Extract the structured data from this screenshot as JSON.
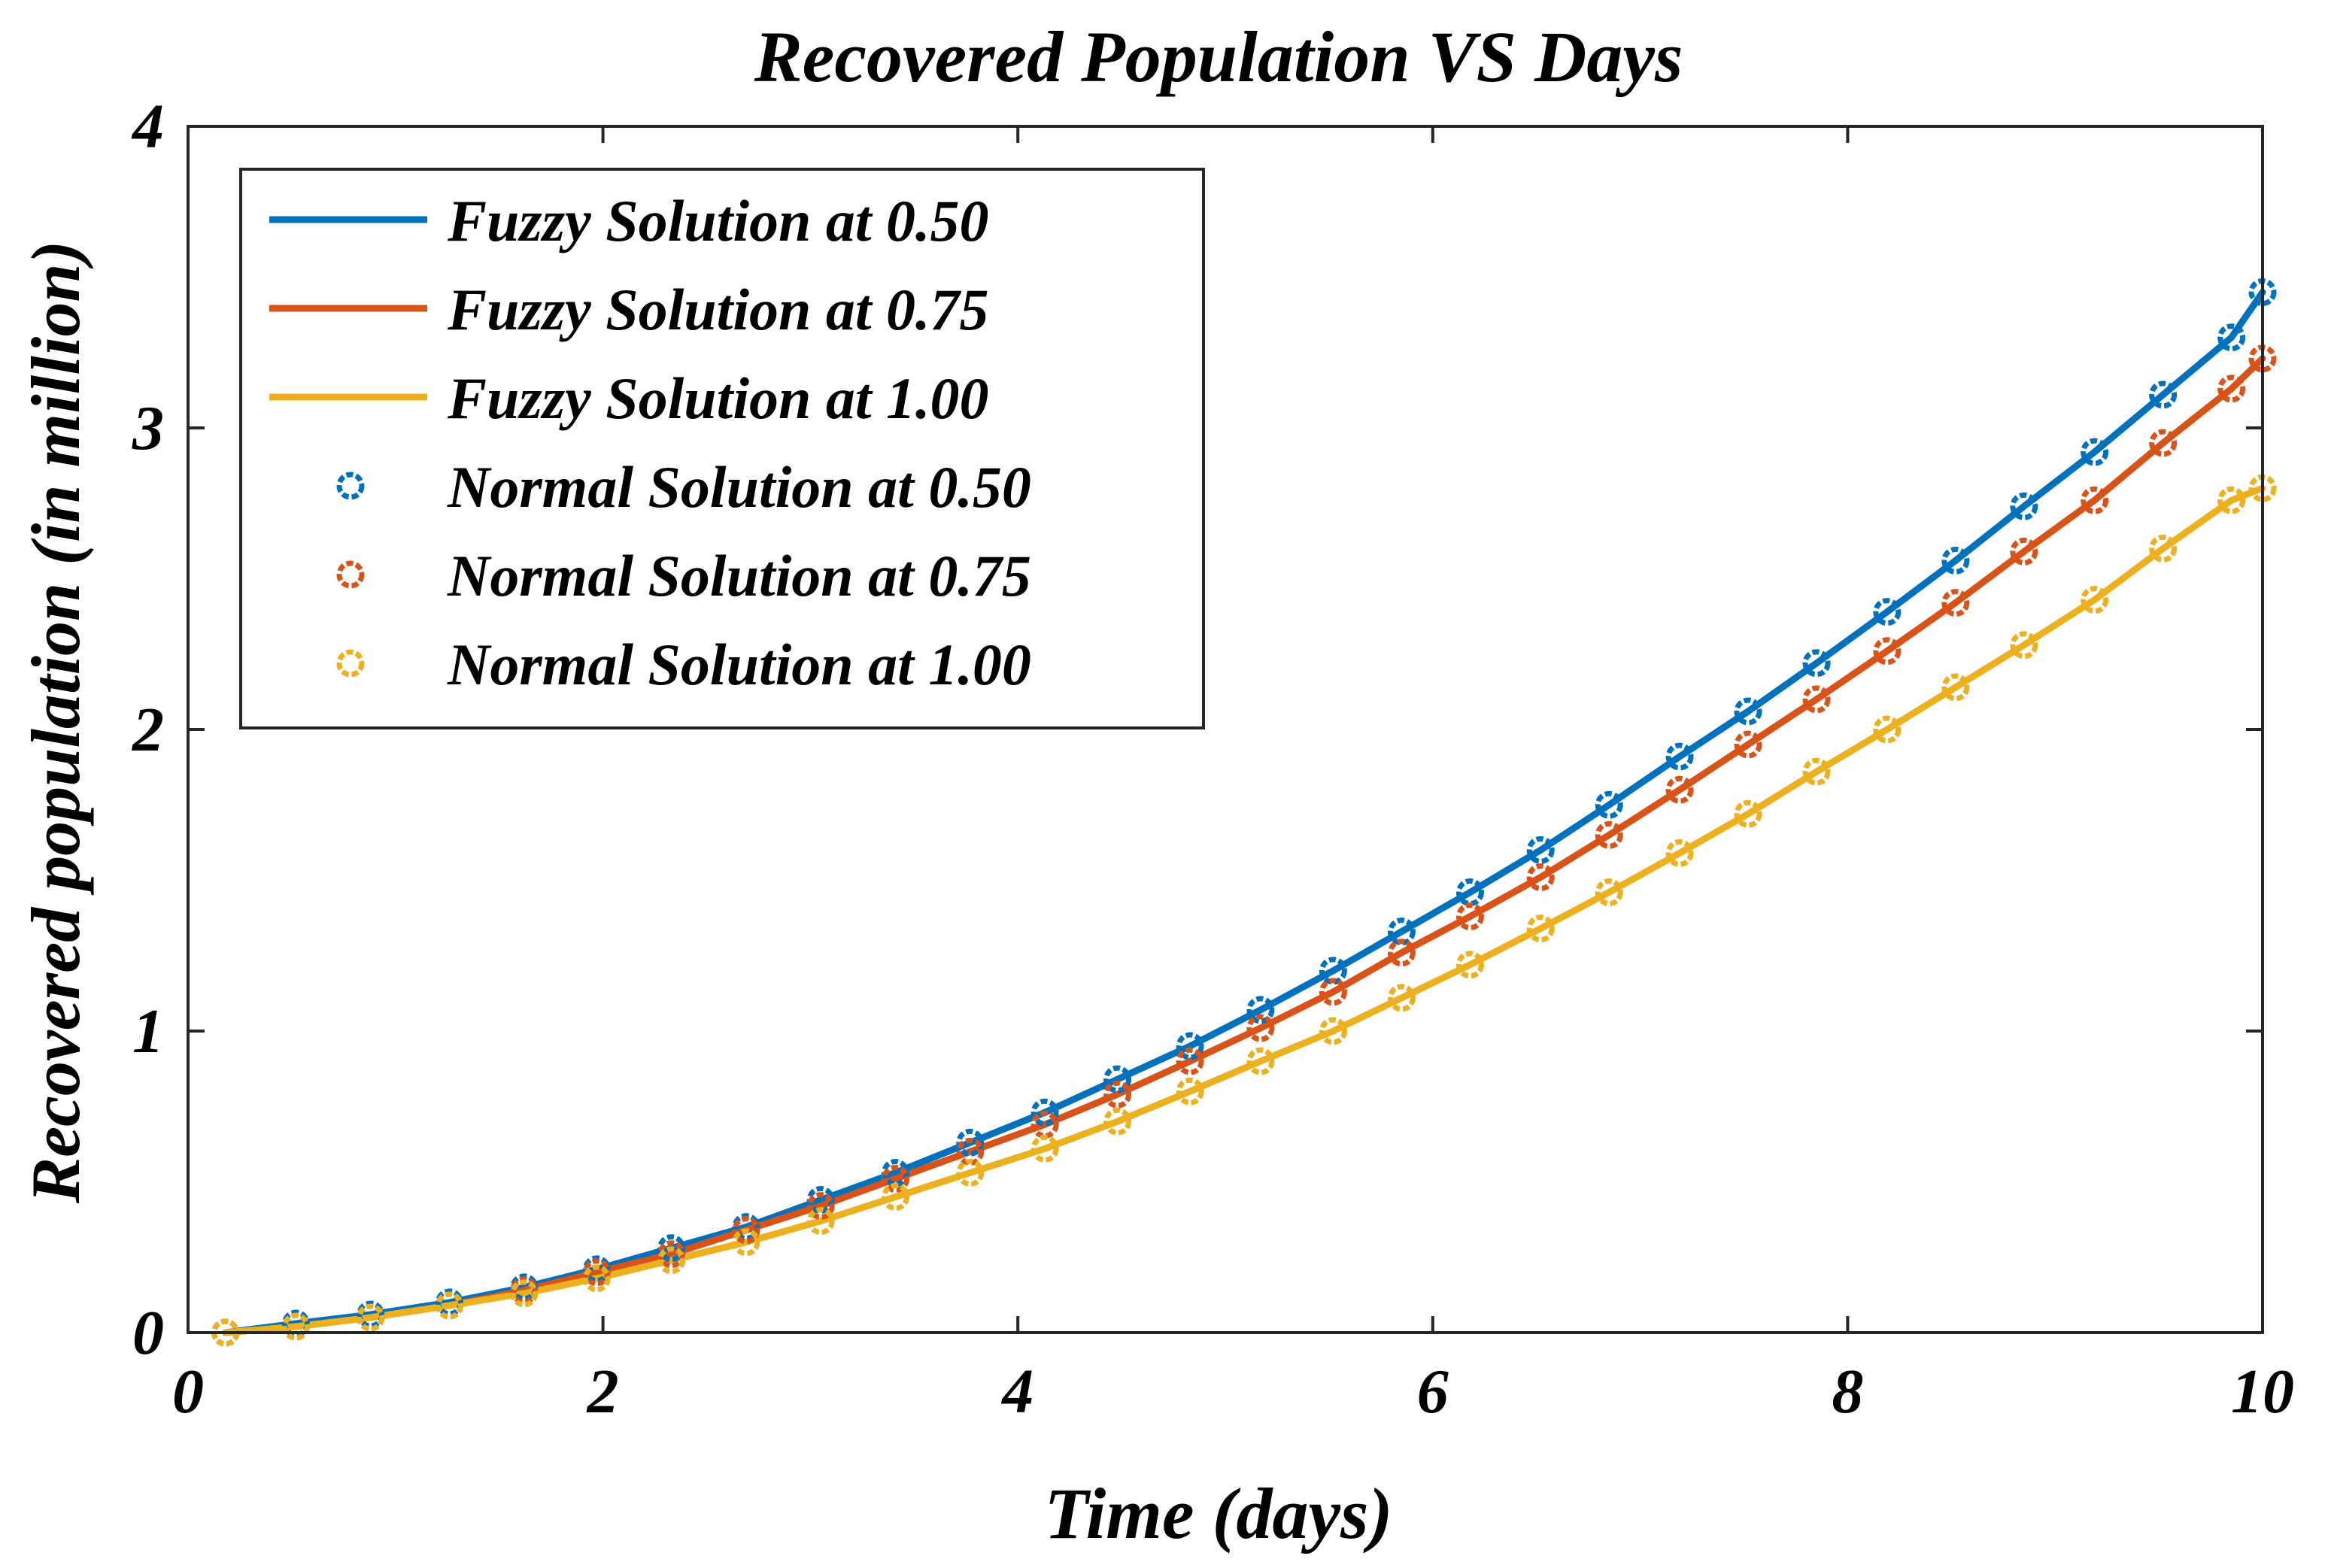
{
  "chart_data": {
    "type": "line",
    "title": "Recovered Population VS Days",
    "xlabel": "Time (days)",
    "ylabel": "Recovered population (in million)",
    "xlim": [
      0,
      10
    ],
    "ylim": [
      0,
      4
    ],
    "xticks": [
      0,
      2,
      4,
      6,
      8,
      10
    ],
    "yticks": [
      0,
      1,
      2,
      3,
      4
    ],
    "grid": false,
    "legend_position": "top-left",
    "x": [
      0.18,
      0.52,
      0.88,
      1.26,
      1.62,
      1.97,
      2.33,
      2.69,
      3.05,
      3.41,
      3.77,
      4.13,
      4.48,
      4.83,
      5.17,
      5.52,
      5.85,
      6.18,
      6.52,
      6.85,
      7.19,
      7.52,
      7.85,
      8.19,
      8.52,
      8.85,
      9.19,
      9.52,
      9.85,
      10.0
    ],
    "series": [
      {
        "name": "Fuzzy Solution at 0.50",
        "style": "line",
        "color": "#0072BD",
        "values": [
          0.0,
          0.03,
          0.06,
          0.1,
          0.15,
          0.21,
          0.28,
          0.35,
          0.44,
          0.53,
          0.63,
          0.73,
          0.84,
          0.95,
          1.07,
          1.2,
          1.33,
          1.46,
          1.6,
          1.75,
          1.91,
          2.06,
          2.22,
          2.39,
          2.56,
          2.74,
          2.92,
          3.11,
          3.3,
          3.45
        ]
      },
      {
        "name": "Fuzzy Solution at 0.75",
        "style": "line",
        "color": "#D95319",
        "values": [
          0.0,
          0.02,
          0.05,
          0.09,
          0.14,
          0.2,
          0.26,
          0.34,
          0.42,
          0.51,
          0.6,
          0.69,
          0.79,
          0.9,
          1.01,
          1.13,
          1.26,
          1.38,
          1.51,
          1.65,
          1.8,
          1.95,
          2.1,
          2.26,
          2.42,
          2.59,
          2.76,
          2.95,
          3.13,
          3.23
        ]
      },
      {
        "name": "Fuzzy Solution at 1.00",
        "style": "line",
        "color": "#EDB120",
        "values": [
          0.0,
          0.02,
          0.05,
          0.09,
          0.13,
          0.18,
          0.24,
          0.3,
          0.37,
          0.45,
          0.53,
          0.61,
          0.7,
          0.8,
          0.9,
          1.0,
          1.11,
          1.22,
          1.34,
          1.46,
          1.59,
          1.72,
          1.86,
          2.0,
          2.14,
          2.28,
          2.43,
          2.6,
          2.76,
          2.8
        ]
      },
      {
        "name": "Normal Solution at 0.50",
        "style": "markers",
        "color": "#0072BD",
        "values": [
          0.0,
          0.03,
          0.06,
          0.1,
          0.15,
          0.21,
          0.28,
          0.35,
          0.44,
          0.53,
          0.63,
          0.73,
          0.84,
          0.95,
          1.07,
          1.2,
          1.33,
          1.46,
          1.6,
          1.75,
          1.91,
          2.06,
          2.22,
          2.39,
          2.56,
          2.74,
          2.92,
          3.11,
          3.3,
          3.45
        ]
      },
      {
        "name": "Normal Solution at 0.75",
        "style": "markers",
        "color": "#D95319",
        "values": [
          0.0,
          0.02,
          0.05,
          0.09,
          0.14,
          0.2,
          0.26,
          0.34,
          0.42,
          0.51,
          0.6,
          0.69,
          0.79,
          0.9,
          1.01,
          1.13,
          1.26,
          1.38,
          1.51,
          1.65,
          1.8,
          1.95,
          2.1,
          2.26,
          2.42,
          2.59,
          2.76,
          2.95,
          3.13,
          3.23
        ]
      },
      {
        "name": "Normal Solution at 1.00",
        "style": "markers",
        "color": "#EDB120",
        "values": [
          0.0,
          0.02,
          0.05,
          0.09,
          0.13,
          0.18,
          0.24,
          0.3,
          0.37,
          0.45,
          0.53,
          0.61,
          0.7,
          0.8,
          0.9,
          1.0,
          1.11,
          1.22,
          1.34,
          1.46,
          1.59,
          1.72,
          1.86,
          2.0,
          2.14,
          2.28,
          2.43,
          2.6,
          2.76,
          2.8
        ]
      }
    ]
  }
}
